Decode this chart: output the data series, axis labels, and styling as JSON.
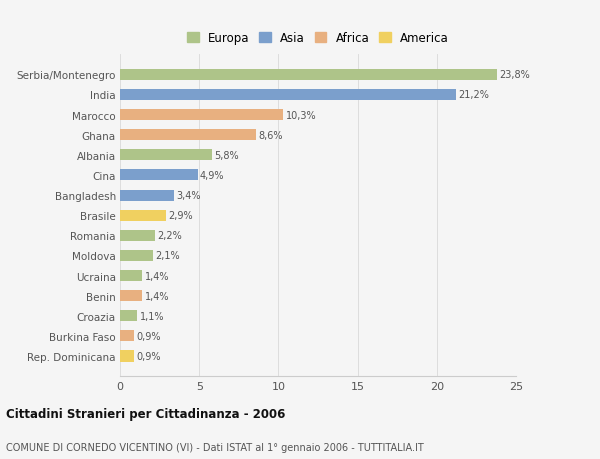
{
  "categories": [
    "Rep. Dominicana",
    "Burkina Faso",
    "Croazia",
    "Benin",
    "Ucraina",
    "Moldova",
    "Romania",
    "Brasile",
    "Bangladesh",
    "Cina",
    "Albania",
    "Ghana",
    "Marocco",
    "India",
    "Serbia/Montenegro"
  ],
  "values": [
    0.9,
    0.9,
    1.1,
    1.4,
    1.4,
    2.1,
    2.2,
    2.9,
    3.4,
    4.9,
    5.8,
    8.6,
    10.3,
    21.2,
    23.8
  ],
  "continents": [
    "America",
    "Africa",
    "Europa",
    "Africa",
    "Europa",
    "Europa",
    "Europa",
    "America",
    "Asia",
    "Asia",
    "Europa",
    "Africa",
    "Africa",
    "Asia",
    "Europa"
  ],
  "colors": {
    "Europa": "#aec489",
    "Asia": "#7b9fcc",
    "Africa": "#e8b080",
    "America": "#f0d060"
  },
  "labels": [
    "0,9%",
    "0,9%",
    "1,1%",
    "1,4%",
    "1,4%",
    "2,1%",
    "2,2%",
    "2,9%",
    "3,4%",
    "4,9%",
    "5,8%",
    "8,6%",
    "10,3%",
    "21,2%",
    "23,8%"
  ],
  "title": "Cittadini Stranieri per Cittadinanza - 2006",
  "subtitle": "COMUNE DI CORNEDO VICENTINO (VI) - Dati ISTAT al 1° gennaio 2006 - TUTTITALIA.IT",
  "xlim": [
    0,
    25
  ],
  "xticks": [
    0,
    5,
    10,
    15,
    20,
    25
  ],
  "background_color": "#f5f5f5",
  "legend_order": [
    "Europa",
    "Asia",
    "Africa",
    "America"
  ]
}
